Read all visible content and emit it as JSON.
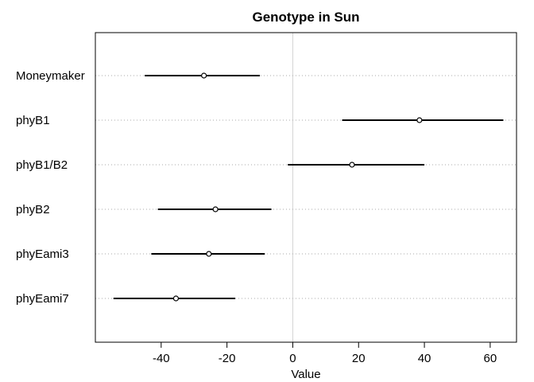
{
  "chart_data": {
    "type": "dotplot-interval",
    "title": "Genotype in Sun",
    "xlabel": "Value",
    "ylabel": "",
    "xlim": [
      -60,
      68
    ],
    "xticks": [
      -40,
      -20,
      0,
      20,
      40,
      60
    ],
    "zero_line": 0,
    "grid": "dotted horizontal guides per category",
    "categories": [
      "Moneymaker",
      "phyB1",
      "phyB1/B2",
      "phyB2",
      "phyEami3",
      "phyEami7"
    ],
    "estimates": [
      -27,
      38.5,
      18,
      -23.5,
      -25.5,
      -35.5
    ],
    "lower": [
      -45,
      15,
      -1.5,
      -41,
      -43,
      -54.5
    ],
    "upper": [
      -10,
      64,
      40,
      -6.5,
      -8.5,
      -17.5
    ],
    "colors": {
      "interval": "#000000",
      "guide": "#aaaaaa",
      "zero": "#d3d3d3",
      "frame": "#000000"
    }
  }
}
